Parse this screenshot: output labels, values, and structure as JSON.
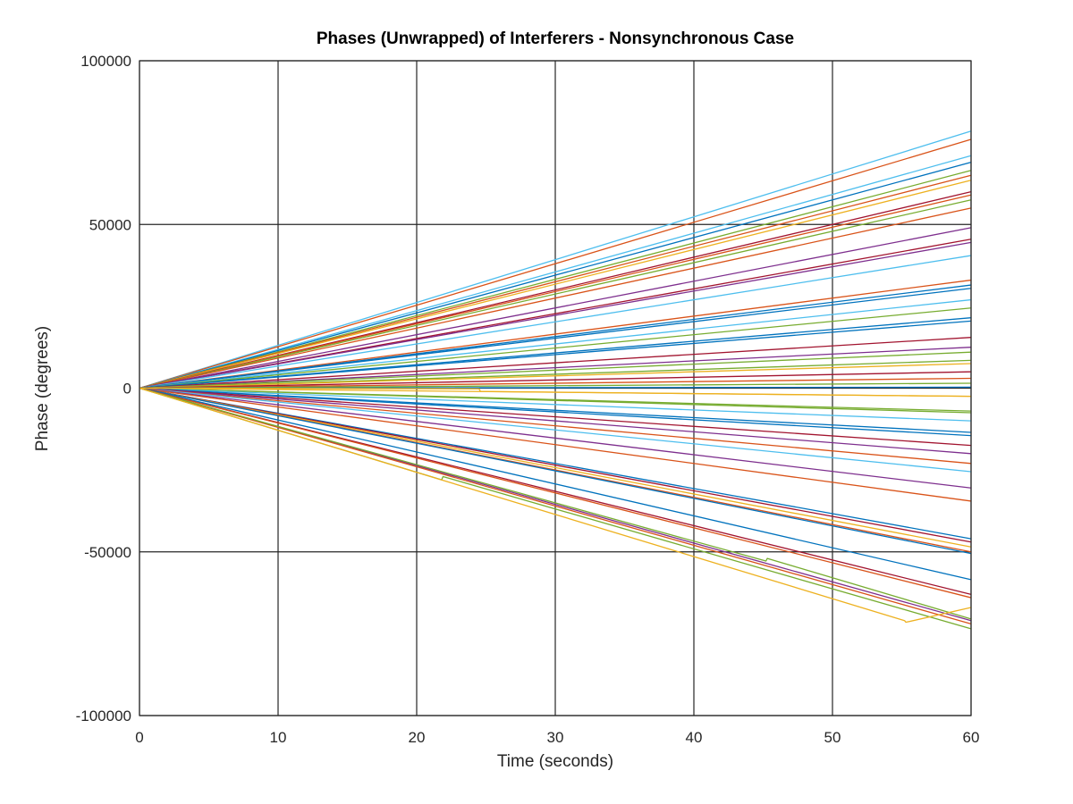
{
  "chart_data": {
    "type": "line",
    "title": "Phases (Unwrapped) of Interferers - Nonsynchronous Case",
    "xlabel": "Time (seconds)",
    "ylabel": "Phase (degrees)",
    "xlim": [
      0,
      60
    ],
    "ylim": [
      -100000,
      100000
    ],
    "xticks": [
      0,
      10,
      20,
      30,
      40,
      50,
      60
    ],
    "yticks": [
      -100000,
      -50000,
      0,
      50000,
      100000
    ],
    "xtick_labels": [
      "0",
      "10",
      "20",
      "30",
      "40",
      "50",
      "60"
    ],
    "ytick_labels": [
      "-100000",
      "-50000",
      "0",
      "50000",
      "100000"
    ],
    "grid": true,
    "box": true,
    "palette": [
      "#0072bd",
      "#d95319",
      "#edb120",
      "#7e2f8e",
      "#77ac30",
      "#4dbeee",
      "#a2142f"
    ],
    "series": [
      {
        "color": "#4dbeee",
        "x": [
          0,
          60
        ],
        "y": [
          0,
          78500
        ]
      },
      {
        "color": "#d95319",
        "x": [
          0,
          60
        ],
        "y": [
          0,
          76000
        ]
      },
      {
        "color": "#4dbeee",
        "x": [
          0,
          60
        ],
        "y": [
          0,
          71000
        ]
      },
      {
        "color": "#0072bd",
        "x": [
          0,
          60
        ],
        "y": [
          0,
          69000
        ]
      },
      {
        "color": "#77ac30",
        "x": [
          0,
          60
        ],
        "y": [
          0,
          66500
        ]
      },
      {
        "color": "#d95319",
        "x": [
          0,
          60
        ],
        "y": [
          0,
          65000
        ]
      },
      {
        "color": "#edb120",
        "x": [
          0,
          60
        ],
        "y": [
          0,
          63500
        ]
      },
      {
        "color": "#a2142f",
        "x": [
          0,
          60
        ],
        "y": [
          0,
          60000
        ]
      },
      {
        "color": "#d95319",
        "x": [
          0,
          60
        ],
        "y": [
          0,
          59000
        ]
      },
      {
        "color": "#77ac30",
        "x": [
          0,
          60
        ],
        "y": [
          0,
          57500
        ]
      },
      {
        "color": "#d95319",
        "x": [
          0,
          60
        ],
        "y": [
          0,
          55000
        ]
      },
      {
        "color": "#7e2f8e",
        "x": [
          0,
          60
        ],
        "y": [
          0,
          49000
        ]
      },
      {
        "color": "#a2142f",
        "x": [
          0,
          60
        ],
        "y": [
          0,
          45500
        ]
      },
      {
        "color": "#7e2f8e",
        "x": [
          0,
          60
        ],
        "y": [
          0,
          44500
        ]
      },
      {
        "color": "#4dbeee",
        "x": [
          0,
          60
        ],
        "y": [
          0,
          40500
        ]
      },
      {
        "color": "#d95319",
        "x": [
          0,
          60
        ],
        "y": [
          0,
          33000
        ]
      },
      {
        "color": "#0072bd",
        "x": [
          0,
          60
        ],
        "y": [
          0,
          31500
        ]
      },
      {
        "color": "#0072bd",
        "x": [
          0,
          60
        ],
        "y": [
          0,
          30500
        ]
      },
      {
        "color": "#4dbeee",
        "x": [
          0,
          60
        ],
        "y": [
          0,
          27000
        ]
      },
      {
        "color": "#77ac30",
        "x": [
          0,
          60
        ],
        "y": [
          0,
          24500
        ]
      },
      {
        "color": "#0072bd",
        "x": [
          0,
          60
        ],
        "y": [
          0,
          21500
        ]
      },
      {
        "color": "#0072bd",
        "x": [
          0,
          60
        ],
        "y": [
          0,
          20500
        ]
      },
      {
        "color": "#a2142f",
        "x": [
          0,
          60
        ],
        "y": [
          0,
          15500
        ]
      },
      {
        "color": "#7e2f8e",
        "x": [
          0,
          60
        ],
        "y": [
          0,
          12500
        ]
      },
      {
        "color": "#77ac30",
        "x": [
          0,
          60
        ],
        "y": [
          0,
          11000
        ]
      },
      {
        "color": "#77ac30",
        "x": [
          0,
          60
        ],
        "y": [
          0,
          8500
        ]
      },
      {
        "color": "#edb120",
        "x": [
          0,
          60
        ],
        "y": [
          0,
          7500
        ]
      },
      {
        "color": "#a2142f",
        "x": [
          0,
          60
        ],
        "y": [
          0,
          5000
        ]
      },
      {
        "color": "#d95319",
        "x": [
          0,
          60
        ],
        "y": [
          0,
          3000
        ]
      },
      {
        "color": "#77ac30",
        "x": [
          0,
          60
        ],
        "y": [
          0,
          1500
        ]
      },
      {
        "color": "#0072bd",
        "x": [
          0,
          60
        ],
        "y": [
          0,
          300
        ]
      },
      {
        "color": "#edb120",
        "x": [
          0,
          60
        ],
        "y": [
          0,
          -2500
        ]
      },
      {
        "color": "#77ac30",
        "x": [
          0,
          60
        ],
        "y": [
          0,
          -7000
        ]
      },
      {
        "color": "#77ac30",
        "x": [
          0,
          60
        ],
        "y": [
          0,
          -7500
        ]
      },
      {
        "color": "#4dbeee",
        "x": [
          0,
          60
        ],
        "y": [
          0,
          -10000
        ]
      },
      {
        "color": "#0072bd",
        "x": [
          0,
          60
        ],
        "y": [
          0,
          -13500
        ]
      },
      {
        "color": "#0072bd",
        "x": [
          0,
          60
        ],
        "y": [
          0,
          -14500
        ]
      },
      {
        "color": "#a2142f",
        "x": [
          0,
          60
        ],
        "y": [
          0,
          -17500
        ]
      },
      {
        "color": "#7e2f8e",
        "x": [
          0,
          60
        ],
        "y": [
          0,
          -20000
        ]
      },
      {
        "color": "#d95319",
        "x": [
          0,
          60
        ],
        "y": [
          0,
          -23000
        ]
      },
      {
        "color": "#4dbeee",
        "x": [
          0,
          60
        ],
        "y": [
          0,
          -25500
        ]
      },
      {
        "color": "#7e2f8e",
        "x": [
          0,
          60
        ],
        "y": [
          0,
          -30500
        ]
      },
      {
        "color": "#d95319",
        "x": [
          0,
          60
        ],
        "y": [
          0,
          -34500
        ]
      },
      {
        "color": "#0072bd",
        "x": [
          0,
          60
        ],
        "y": [
          0,
          -46000
        ]
      },
      {
        "color": "#a2142f",
        "x": [
          0,
          60
        ],
        "y": [
          0,
          -47000
        ]
      },
      {
        "color": "#edb120",
        "x": [
          0,
          60
        ],
        "y": [
          0,
          -48500
        ]
      },
      {
        "color": "#d95319",
        "x": [
          0,
          60
        ],
        "y": [
          0,
          -50000
        ]
      },
      {
        "color": "#0072bd",
        "x": [
          0,
          60
        ],
        "y": [
          0,
          -50500
        ]
      },
      {
        "color": "#0072bd",
        "x": [
          0,
          60
        ],
        "y": [
          0,
          -58500
        ]
      },
      {
        "color": "#a2142f",
        "x": [
          0,
          60
        ],
        "y": [
          0,
          -63000
        ]
      },
      {
        "color": "#d95319",
        "x": [
          0,
          60
        ],
        "y": [
          0,
          -64000
        ]
      },
      {
        "color": "#7e2f8e",
        "x": [
          0,
          60
        ],
        "y": [
          0,
          -71000
        ]
      },
      {
        "color": "#d95319",
        "x": [
          0,
          60
        ],
        "y": [
          0,
          -72000
        ]
      },
      {
        "color": "#77ac30",
        "x": [
          0,
          45.2,
          45.3,
          60
        ],
        "y": [
          0,
          -52800,
          -52000,
          -70500
        ]
      },
      {
        "color": "#77ac30",
        "x": [
          0,
          21.8,
          21.9,
          60
        ],
        "y": [
          0,
          -28000,
          -27000,
          -73500
        ]
      },
      {
        "color": "#edb120",
        "x": [
          0,
          55.2,
          55.3,
          60
        ],
        "y": [
          0,
          -71000,
          -71500,
          -67000
        ]
      },
      {
        "color": "#edb120",
        "x": [
          0,
          24.5,
          24.6,
          60
        ],
        "y": [
          0,
          -200,
          -1000,
          -2500
        ]
      }
    ]
  }
}
